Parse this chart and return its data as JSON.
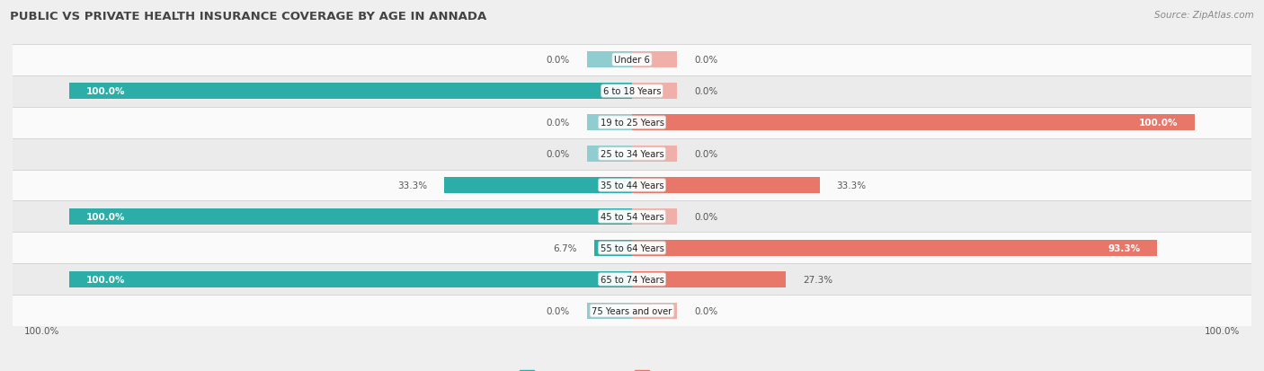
{
  "title": "PUBLIC VS PRIVATE HEALTH INSURANCE COVERAGE BY AGE IN ANNADA",
  "source": "Source: ZipAtlas.com",
  "categories": [
    "Under 6",
    "6 to 18 Years",
    "19 to 25 Years",
    "25 to 34 Years",
    "35 to 44 Years",
    "45 to 54 Years",
    "55 to 64 Years",
    "65 to 74 Years",
    "75 Years and over"
  ],
  "public_values": [
    0.0,
    100.0,
    0.0,
    0.0,
    33.3,
    100.0,
    6.7,
    100.0,
    0.0
  ],
  "private_values": [
    0.0,
    0.0,
    100.0,
    0.0,
    33.3,
    0.0,
    93.3,
    27.3,
    0.0
  ],
  "public_color": "#2DADA7",
  "private_color": "#E8776A",
  "public_color_light": "#90CDD0",
  "private_color_light": "#F0AFA8",
  "bg_color": "#EFEFEF",
  "row_bg_even": "#FAFAFA",
  "row_bg_odd": "#EBEBEB",
  "title_color": "#444444",
  "label_dark": "#555555",
  "label_white": "#FFFFFF",
  "bar_height": 0.52,
  "stub_size": 8.0,
  "xlim": 110,
  "figsize": [
    14.06,
    4.14
  ],
  "dpi": 100
}
